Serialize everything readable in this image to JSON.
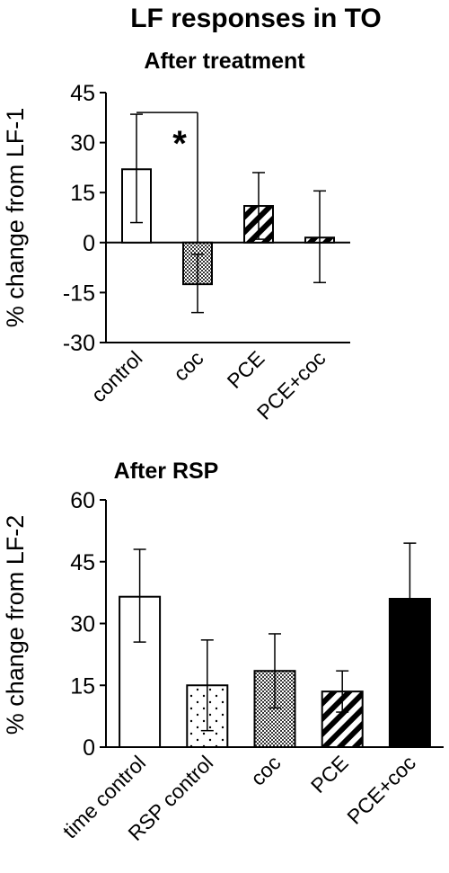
{
  "figure": {
    "title": "LF responses in TO"
  },
  "chart_data": [
    {
      "type": "bar",
      "title": "After treatment",
      "ylabel": "% change from LF-1",
      "xlabel": "",
      "ylim": [
        -30,
        45
      ],
      "yticks": [
        -30,
        -15,
        0,
        15,
        30,
        45
      ],
      "categories": [
        "control",
        "coc",
        "PCE",
        "PCE+coc"
      ],
      "values": [
        22,
        -12.5,
        11,
        1.5
      ],
      "error_low": [
        6,
        -21,
        1,
        -12
      ],
      "error_high": [
        38.5,
        -3.5,
        21,
        15.5
      ],
      "fills": [
        "white",
        "checker",
        "stripes",
        "stripes"
      ],
      "significance": {
        "from": 0,
        "to": 1,
        "label": "*"
      },
      "grid": false,
      "legend": "none"
    },
    {
      "type": "bar",
      "title": "After RSP",
      "ylabel": "% change from LF-2",
      "xlabel": "",
      "ylim": [
        0,
        60
      ],
      "yticks": [
        0,
        15,
        30,
        45,
        60
      ],
      "categories": [
        "time control",
        "RSP control",
        "coc",
        "PCE",
        "PCE+coc"
      ],
      "values": [
        36.5,
        15,
        18.5,
        13.5,
        36
      ],
      "error_low": [
        25.5,
        4,
        9.5,
        8.5,
        22.5
      ],
      "error_high": [
        48,
        26,
        27.5,
        18.5,
        49.5
      ],
      "fills": [
        "white",
        "dots",
        "checker",
        "stripes",
        "black"
      ],
      "grid": false,
      "legend": "none"
    }
  ]
}
